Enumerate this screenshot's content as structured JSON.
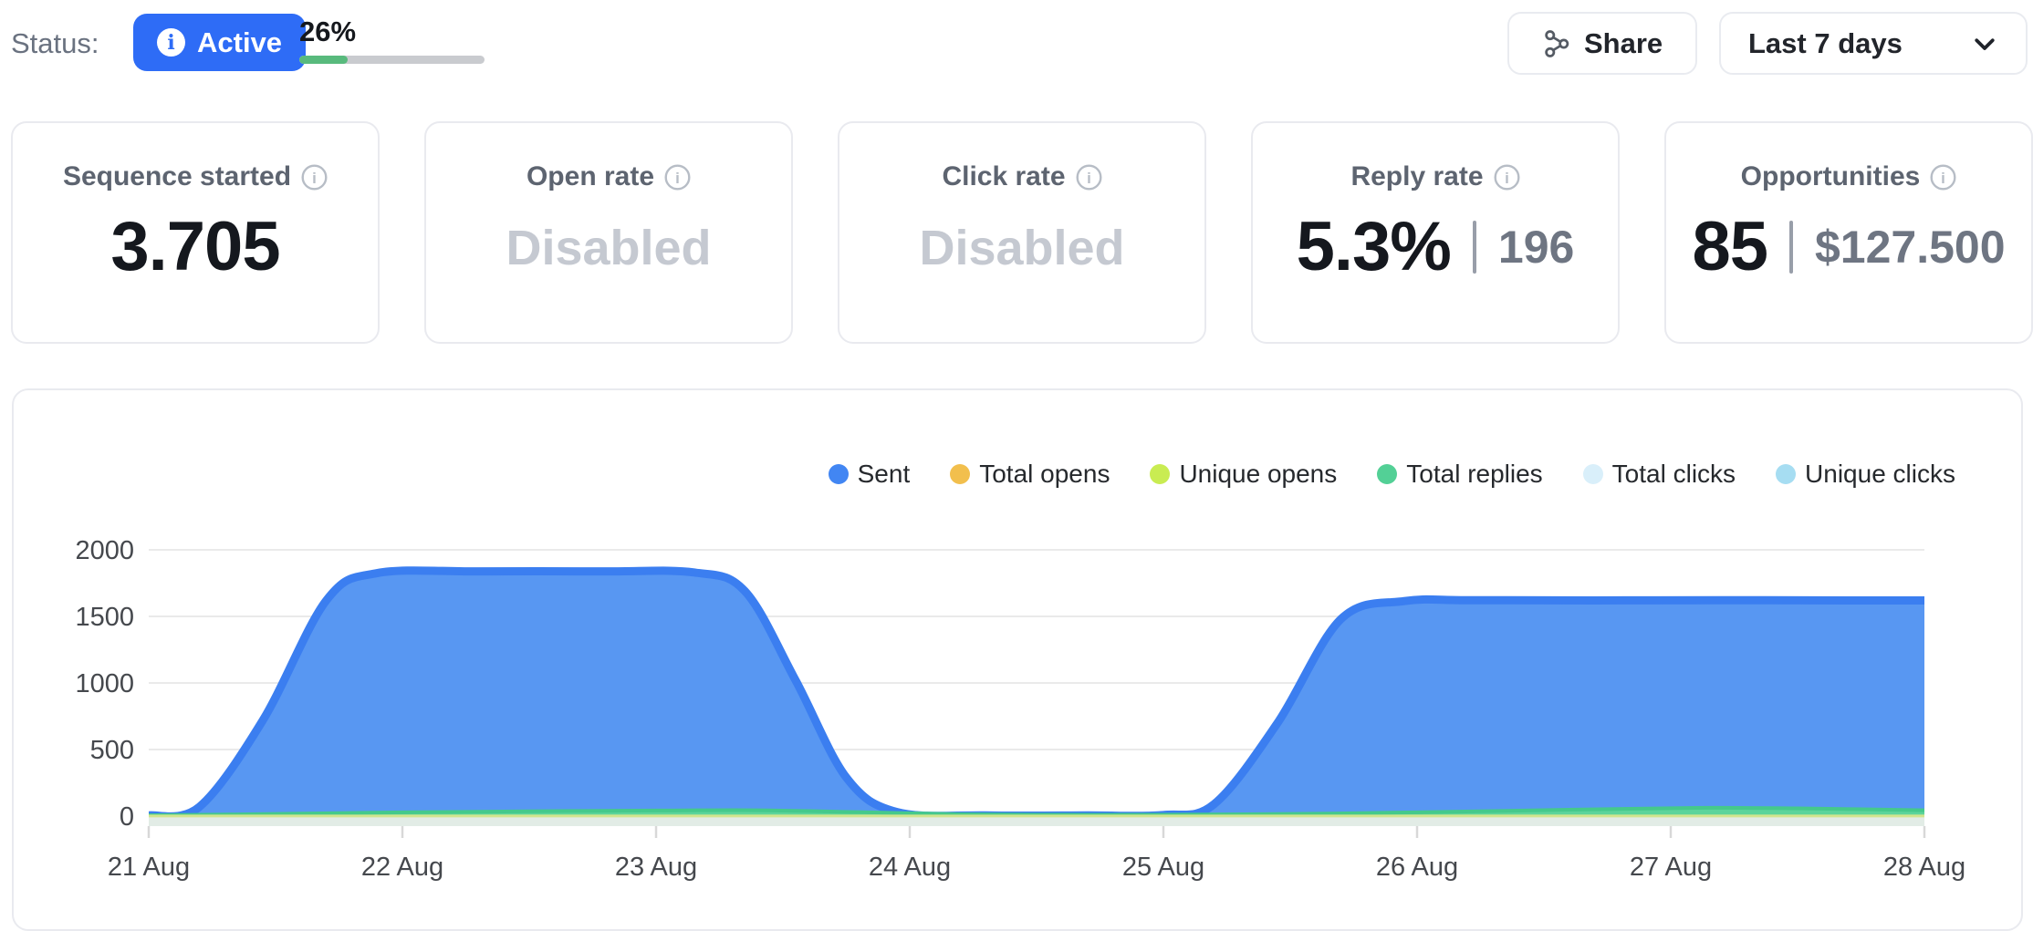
{
  "header": {
    "status_label": "Status:",
    "status_badge": {
      "label": "Active",
      "icon": "info-icon",
      "color": "#2e6cf6"
    },
    "progress": {
      "percent": 26,
      "percent_label": "26%",
      "bar_color": "#58ba7d",
      "track_color": "#c9cbcf"
    },
    "share_button": {
      "label": "Share",
      "icon": "share-nodes-icon"
    },
    "date_range_select": {
      "value": "Last 7 days",
      "icon": "chevron-down-icon"
    }
  },
  "stat_cards": [
    {
      "label": "Sequence started",
      "icon": "info-icon",
      "value": "3.705"
    },
    {
      "label": "Open rate",
      "icon": "info-icon",
      "value": "Disabled"
    },
    {
      "label": "Click rate",
      "icon": "info-icon",
      "value": "Disabled"
    },
    {
      "label": "Reply rate",
      "icon": "info-icon",
      "value": "5.3%",
      "divider": "|",
      "secondary_value": "196"
    },
    {
      "label": "Opportunities",
      "icon": "info-icon",
      "value": "85",
      "divider": "|",
      "secondary_value": "$127.500"
    }
  ],
  "chart_data": {
    "type": "area",
    "title": "",
    "xlabel": "",
    "ylabel": "",
    "x_tick_labels": [
      "21 Aug",
      "22 Aug",
      "23 Aug",
      "24 Aug",
      "25 Aug",
      "26 Aug",
      "27 Aug",
      "28 Aug"
    ],
    "y_ticks": [
      0,
      500,
      1000,
      1500,
      2000
    ],
    "ylim": [
      0,
      2000
    ],
    "grid": true,
    "legend_position": "top-right",
    "legend": [
      {
        "label": "Sent",
        "color": "#4286f3"
      },
      {
        "label": "Total opens",
        "color": "#f2bf4d"
      },
      {
        "label": "Unique opens",
        "color": "#c9ec52"
      },
      {
        "label": "Total replies",
        "color": "#53d096"
      },
      {
        "label": "Total clicks",
        "color": "#d9effa"
      },
      {
        "label": "Unique clicks",
        "color": "#a6ddf2"
      }
    ],
    "x_unit": "days_from_21_Aug",
    "draw_order": [
      "Sent",
      "Total replies",
      "Unique clicks",
      "Total clicks",
      "Unique opens"
    ],
    "series": [
      {
        "name": "Sent",
        "fill": "#5897f2",
        "stroke": "#3b7ef0",
        "stroke_width": 9,
        "points": {
          "x": [
            0,
            0.2,
            0.45,
            0.7,
            0.9,
            1.3,
            1.8,
            2.15,
            2.35,
            2.55,
            2.75,
            2.95,
            3.3,
            3.7,
            4.0,
            4.2,
            4.45,
            4.7,
            4.95,
            5.2,
            5.7,
            6.2,
            6.7,
            7.0
          ],
          "values": [
            5,
            70,
            720,
            1620,
            1825,
            1838,
            1838,
            1830,
            1690,
            1020,
            290,
            30,
            5,
            5,
            8,
            90,
            700,
            1480,
            1615,
            1622,
            1620,
            1622,
            1620,
            1620
          ]
        }
      },
      {
        "name": "Total replies",
        "fill": "#5cd49b",
        "stroke": "#45c98b",
        "stroke_width": 4,
        "points": {
          "x": [
            0,
            0.5,
            1.0,
            1.5,
            2.0,
            2.4,
            2.8,
            3.2,
            3.6,
            4.0,
            4.5,
            5.0,
            5.6,
            6.1,
            6.5,
            7.0
          ],
          "values": [
            6,
            16,
            28,
            36,
            42,
            44,
            30,
            14,
            10,
            10,
            16,
            28,
            48,
            62,
            58,
            44
          ]
        }
      },
      {
        "name": "Unique clicks",
        "fill": "#dcebf3",
        "stroke": null,
        "stroke_width": 0,
        "points": {
          "x": [
            0,
            7.0
          ],
          "values": [
            4,
            4
          ]
        }
      },
      {
        "name": "Total clicks",
        "fill": "#e2ece6",
        "stroke": null,
        "stroke_width": 0,
        "points": {
          "x": [
            0,
            7.0
          ],
          "values": [
            8,
            8
          ]
        }
      },
      {
        "name": "Unique opens",
        "fill": null,
        "stroke": "#d2e58e",
        "stroke_width": 3,
        "points": {
          "x": [
            0,
            7.0
          ],
          "values": [
            1,
            1
          ]
        }
      }
    ],
    "axis_color": "#45484d",
    "gridline_color": "#eaeaea",
    "tick_color": "#d8d8d8"
  }
}
